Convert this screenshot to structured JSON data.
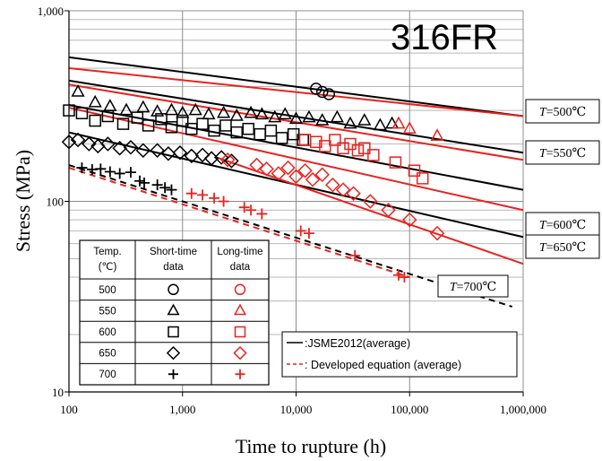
{
  "chart_data": {
    "type": "scatter",
    "title": "316FR",
    "xlabel": "Time to rupture (h)",
    "ylabel": "Stress (MPa)",
    "xscale": "log",
    "yscale": "log",
    "xlim": [
      100,
      1000000
    ],
    "ylim": [
      10,
      1000
    ],
    "grid": true,
    "xticks": [
      "100",
      "1,000",
      "10,000",
      "100,000",
      "1,000,000"
    ],
    "yticks": [
      "10",
      "100",
      "1,000"
    ],
    "temperature_labels": [
      {
        "text": "=500℃",
        "symbol": "T",
        "temp": 500
      },
      {
        "text": "=550℃",
        "symbol": "T",
        "temp": 550
      },
      {
        "text": "=600℃",
        "symbol": "T",
        "temp": 600
      },
      {
        "text": "=650℃",
        "symbol": "T",
        "temp": 650
      },
      {
        "text": "=700℃",
        "symbol": "T",
        "temp": 700
      }
    ],
    "legend": {
      "placement": "bottom-right",
      "entries": [
        ":JSME2012(average)",
        ": Developed equation (average)"
      ],
      "colors": [
        "#000000",
        "#e8231f"
      ]
    },
    "table": {
      "placement": "bottom-left",
      "headers": [
        "Temp.\n(℃)",
        "Short-time\ndata",
        "Long-time\ndata"
      ],
      "rows": [
        {
          "temp": "500",
          "short": "circle",
          "long": "circle"
        },
        {
          "temp": "550",
          "short": "triangle",
          "long": "triangle"
        },
        {
          "temp": "600",
          "short": "square",
          "long": "square"
        },
        {
          "temp": "650",
          "short": "diamond",
          "long": "diamond"
        },
        {
          "temp": "700",
          "short": "plus",
          "long": "plus"
        }
      ]
    },
    "lines": {
      "jsme2012": [
        {
          "temp": 500,
          "x": [
            100,
            1000000
          ],
          "y": [
            570,
            280
          ]
        },
        {
          "temp": 550,
          "x": [
            100,
            1000000
          ],
          "y": [
            430,
            180
          ]
        },
        {
          "temp": 600,
          "x": [
            100,
            1000000
          ],
          "y": [
            320,
            115
          ]
        },
        {
          "temp": 650,
          "x": [
            100,
            1000000
          ],
          "y": [
            230,
            65
          ]
        },
        {
          "temp": 700,
          "x": [
            100,
            800000
          ],
          "y": [
            155,
            28
          ]
        }
      ],
      "developed": [
        {
          "temp": 500,
          "x": [
            100,
            1000000
          ],
          "y": [
            500,
            280
          ]
        },
        {
          "temp": 550,
          "x": [
            100,
            1000000
          ],
          "y": [
            410,
            165
          ]
        },
        {
          "temp": 600,
          "x": [
            100,
            1000000
          ],
          "y": [
            310,
            90
          ]
        },
        {
          "temp": 650,
          "x": [
            2000,
            1000000
          ],
          "y": [
            170,
            47
          ]
        },
        {
          "temp": 700,
          "x": [
            100,
            100000
          ],
          "y": [
            150,
            40
          ]
        }
      ]
    },
    "series": [
      {
        "temp": 500,
        "source": "short",
        "marker": "circle",
        "color": "#000000",
        "x": [
          15000,
          17000,
          19500
        ],
        "y": [
          390,
          375,
          365
        ]
      },
      {
        "temp": 550,
        "source": "short",
        "marker": "triangle",
        "color": "#000000",
        "x": [
          120,
          170,
          230,
          320,
          450,
          600,
          800,
          1000,
          1300,
          1700,
          2300,
          3000,
          4000,
          5000,
          6500,
          8000,
          10000,
          13000,
          17000,
          23000,
          30000,
          40000,
          55000,
          70000
        ],
        "y": [
          375,
          330,
          315,
          300,
          310,
          295,
          300,
          290,
          300,
          285,
          290,
          280,
          290,
          285,
          275,
          285,
          270,
          275,
          265,
          275,
          255,
          265,
          250,
          255
        ]
      },
      {
        "temp": 550,
        "source": "long",
        "marker": "triangle",
        "color": "#e8231f",
        "x": [
          80000,
          100000,
          175000
        ],
        "y": [
          255,
          240,
          220
        ]
      },
      {
        "temp": 600,
        "source": "short",
        "marker": "square",
        "color": "#000000",
        "x": [
          100,
          130,
          170,
          220,
          300,
          400,
          500,
          650,
          800,
          1000,
          1200,
          1500,
          1900,
          2400,
          3000,
          3800,
          4800,
          6000,
          7500,
          9500,
          11500
        ],
        "y": [
          300,
          290,
          265,
          280,
          255,
          275,
          250,
          270,
          245,
          265,
          240,
          255,
          235,
          250,
          230,
          240,
          225,
          235,
          215,
          225,
          210
        ]
      },
      {
        "temp": 600,
        "source": "long",
        "marker": "square",
        "color": "#e8231f",
        "x": [
          12000,
          15000,
          18000,
          22000,
          26000,
          30000,
          35000,
          40000,
          48000,
          75000,
          110000,
          130000
        ],
        "y": [
          210,
          205,
          195,
          210,
          190,
          200,
          185,
          190,
          175,
          160,
          145,
          132
        ]
      },
      {
        "temp": 650,
        "source": "short",
        "marker": "diamond",
        "color": "#000000",
        "x": [
          100,
          120,
          150,
          180,
          220,
          280,
          350,
          450,
          600,
          750,
          950,
          1200,
          1500,
          1800,
          2200,
          2700
        ],
        "y": [
          205,
          210,
          200,
          195,
          200,
          190,
          192,
          185,
          185,
          178,
          180,
          173,
          175,
          168,
          170,
          163
        ]
      },
      {
        "temp": 650,
        "source": "long",
        "marker": "diamond",
        "color": "#e8231f",
        "x": [
          2500,
          4500,
          5500,
          7000,
          8500,
          10000,
          12000,
          14000,
          17000,
          21000,
          26000,
          32000,
          45000,
          65000,
          100000,
          175000
        ],
        "y": [
          165,
          155,
          148,
          140,
          150,
          135,
          145,
          130,
          138,
          122,
          115,
          110,
          100,
          90,
          80,
          68
        ]
      },
      {
        "temp": 700,
        "source": "short",
        "marker": "plus",
        "color": "#000000",
        "x": [
          130,
          160,
          190,
          230,
          280,
          350,
          420,
          460,
          600,
          700,
          800
        ],
        "y": [
          150,
          147,
          148,
          143,
          140,
          142,
          128,
          125,
          122,
          118,
          115
        ]
      },
      {
        "temp": 700,
        "source": "long",
        "marker": "plus",
        "color": "#e8231f",
        "x": [
          1200,
          1500,
          1900,
          2300,
          3500,
          4000,
          5000,
          11000,
          13000,
          33000,
          80000,
          90000
        ],
        "y": [
          110,
          108,
          104,
          100,
          93,
          90,
          86,
          70,
          68,
          52,
          41,
          40
        ]
      }
    ]
  }
}
